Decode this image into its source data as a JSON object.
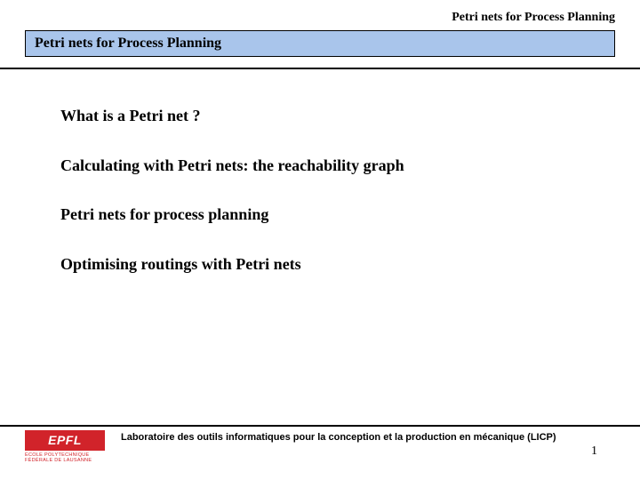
{
  "header": {
    "running_title": "Petri nets for Process Planning"
  },
  "title_bar": {
    "text": "Petri nets for Process Planning",
    "background_color": "#a9c5eb",
    "border_color": "#000000"
  },
  "content": {
    "bullets": [
      "What is a Petri net ?",
      "Calculating with Petri nets: the reachability graph",
      "Petri nets for process planning",
      "Optimising routings with Petri nets"
    ]
  },
  "footer": {
    "logo_text": "EPFL",
    "logo_subtext_line1": "ÉCOLE   POLYTECHNIQUE",
    "logo_subtext_line2": "FÉDÉRALE DE LAUSANNE",
    "logo_color": "#d1232a",
    "lab_text": "Laboratoire des outils informatiques pour la conception et la production en mécanique   (LICP)"
  },
  "page_number": "1",
  "colors": {
    "rule": "#000000",
    "background": "#ffffff"
  }
}
